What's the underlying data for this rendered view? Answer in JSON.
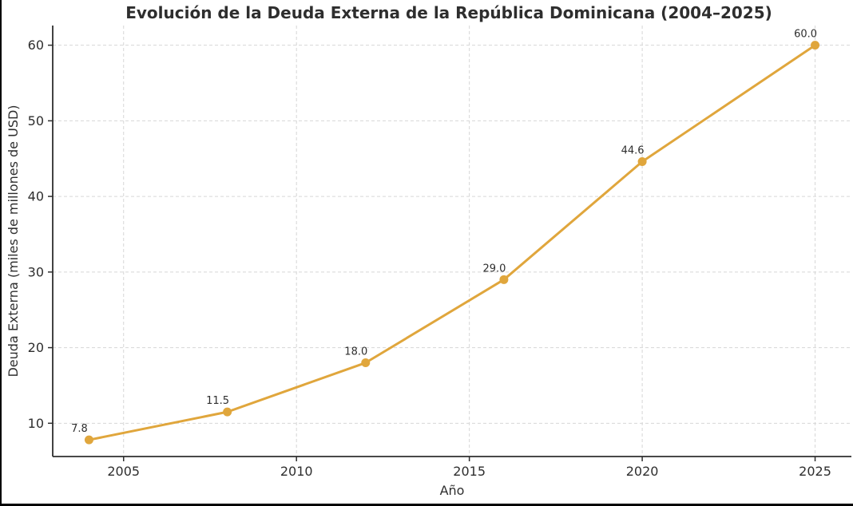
{
  "chart_data": {
    "type": "line",
    "title": "Evolución de la Deuda Externa de la República Dominicana (2004–2025)",
    "xlabel": "Año",
    "ylabel": "Deuda Externa (miles de millones de USD)",
    "x": [
      2004,
      2008,
      2012,
      2016,
      2020,
      2025
    ],
    "values": [
      7.8,
      11.5,
      18.0,
      29.0,
      44.6,
      60.0
    ],
    "point_labels": [
      "7.8",
      "11.5",
      "18.0",
      "29.0",
      "44.6",
      "60.0"
    ],
    "xticks": [
      2005,
      2010,
      2015,
      2020,
      2025
    ],
    "xtick_labels": [
      "2005",
      "2010",
      "2015",
      "2020",
      "2025"
    ],
    "yticks": [
      10,
      20,
      30,
      40,
      50,
      60
    ],
    "ytick_labels": [
      "10",
      "20",
      "30",
      "40",
      "50",
      "60"
    ],
    "xlim": [
      2002.95,
      2026.05
    ],
    "ylim": [
      5.6,
      62.6
    ],
    "grid": true,
    "grid_style": "dashed",
    "legend_position": "none",
    "colors": {
      "line": "#E0A63C",
      "marker": "#E0A63C",
      "text": "#2e2e2e",
      "grid": "#d6d6d6",
      "spine": "#2e2e2e",
      "background": "#ffffff"
    }
  }
}
